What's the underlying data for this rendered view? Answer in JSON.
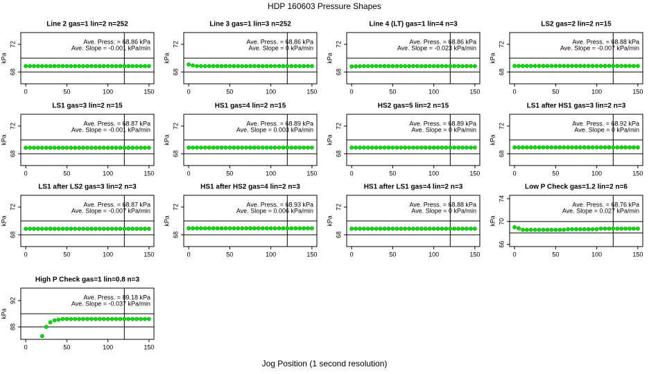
{
  "title": "HDP  160603  Pressure Shapes",
  "xlabel": "Jog Position (1 second resolution)",
  "chart_data": [
    {
      "type": "scatter",
      "title": "Line 2 gas=1 lin=2 n=252",
      "ylabel": "kPa",
      "annotations": [
        "Ave. Press. = 68.86  kPa",
        "Ave. Slope = -0.001  kPa/min"
      ],
      "color": "#00dd00",
      "xlim": [
        -6,
        156
      ],
      "ylim": [
        66.3,
        73.7
      ],
      "xticks": [
        0,
        50,
        100,
        150
      ],
      "yticks": [
        68,
        72
      ],
      "hlines": [
        68,
        70
      ],
      "vline": 120,
      "x": [
        0,
        5,
        10,
        15,
        20,
        25,
        30,
        35,
        40,
        45,
        50,
        55,
        60,
        65,
        70,
        75,
        80,
        85,
        90,
        95,
        100,
        105,
        110,
        115,
        120,
        125,
        130,
        135,
        140,
        145,
        150
      ],
      "values": [
        68.86,
        68.86,
        68.86,
        68.86,
        68.86,
        68.86,
        68.86,
        68.86,
        68.86,
        68.86,
        68.86,
        68.86,
        68.86,
        68.86,
        68.86,
        68.86,
        68.86,
        68.86,
        68.86,
        68.86,
        68.86,
        68.86,
        68.86,
        68.86,
        68.86,
        68.86,
        68.86,
        68.86,
        68.86,
        68.86,
        68.86
      ]
    },
    {
      "type": "scatter",
      "title": "Line 3 gas=1 lin=3 n=252",
      "ylabel": "kPa",
      "annotations": [
        "Ave. Press. = 68.86  kPa",
        "Ave. Slope = 0  kPa/min"
      ],
      "color": "#00dd00",
      "xlim": [
        -6,
        156
      ],
      "ylim": [
        66.3,
        73.7
      ],
      "xticks": [
        0,
        50,
        100,
        150
      ],
      "yticks": [
        68,
        72
      ],
      "hlines": [
        68,
        70
      ],
      "vline": 120,
      "x": [
        0,
        5,
        10,
        15,
        20,
        25,
        30,
        35,
        40,
        45,
        50,
        55,
        60,
        65,
        70,
        75,
        80,
        85,
        90,
        95,
        100,
        105,
        110,
        115,
        120,
        125,
        130,
        135,
        140,
        145,
        150
      ],
      "values": [
        69.1,
        68.95,
        68.86,
        68.86,
        68.86,
        68.86,
        68.86,
        68.86,
        68.86,
        68.86,
        68.86,
        68.86,
        68.86,
        68.86,
        68.86,
        68.86,
        68.86,
        68.86,
        68.86,
        68.86,
        68.86,
        68.86,
        68.86,
        68.86,
        68.86,
        68.86,
        68.86,
        68.86,
        68.86,
        68.86,
        68.86
      ]
    },
    {
      "type": "scatter",
      "title": "Line 4 (LT) gas=1 lin=4 n=3",
      "ylabel": "kPa",
      "annotations": [
        "Ave. Press. = 68.86  kPa",
        "Ave. Slope = -0.023  kPa/min"
      ],
      "color": "#00dd00",
      "xlim": [
        -6,
        156
      ],
      "ylim": [
        66.3,
        73.7
      ],
      "xticks": [
        0,
        50,
        100,
        150
      ],
      "yticks": [
        68,
        72
      ],
      "hlines": [
        68,
        70
      ],
      "vline": 120,
      "x": [
        0,
        5,
        10,
        15,
        20,
        25,
        30,
        35,
        40,
        45,
        50,
        55,
        60,
        65,
        70,
        75,
        80,
        85,
        90,
        95,
        100,
        105,
        110,
        115,
        120,
        125,
        130,
        135,
        140,
        145,
        150
      ],
      "values": [
        68.8,
        68.82,
        68.84,
        68.86,
        68.86,
        68.86,
        68.86,
        68.86,
        68.86,
        68.86,
        68.86,
        68.86,
        68.86,
        68.86,
        68.86,
        68.86,
        68.86,
        68.86,
        68.86,
        68.86,
        68.86,
        68.86,
        68.86,
        68.86,
        68.86,
        68.86,
        68.86,
        68.86,
        68.86,
        68.86,
        68.86
      ]
    },
    {
      "type": "scatter",
      "title": "LS2 gas=2 lin=2 n=15",
      "ylabel": "kPa",
      "annotations": [
        "Ave. Press. = 68.88  kPa",
        "Ave. Slope = -0.007  kPa/min"
      ],
      "color": "#00dd00",
      "xlim": [
        -6,
        156
      ],
      "ylim": [
        66.3,
        73.7
      ],
      "xticks": [
        0,
        50,
        100,
        150
      ],
      "yticks": [
        68,
        72
      ],
      "hlines": [
        68,
        70
      ],
      "vline": 120,
      "x": [
        0,
        5,
        10,
        15,
        20,
        25,
        30,
        35,
        40,
        45,
        50,
        55,
        60,
        65,
        70,
        75,
        80,
        85,
        90,
        95,
        100,
        105,
        110,
        115,
        120,
        125,
        130,
        135,
        140,
        145,
        150
      ],
      "values": [
        68.88,
        68.88,
        68.88,
        68.88,
        68.88,
        68.88,
        68.88,
        68.88,
        68.88,
        68.88,
        68.88,
        68.88,
        68.88,
        68.88,
        68.88,
        68.88,
        68.88,
        68.88,
        68.88,
        68.88,
        68.88,
        68.88,
        68.88,
        68.88,
        68.88,
        68.88,
        68.88,
        68.88,
        68.88,
        68.88,
        68.88
      ]
    },
    {
      "type": "scatter",
      "title": "LS1 gas=3 lin=2 n=15",
      "ylabel": "kPa",
      "annotations": [
        "Ave. Press. = 68.87  kPa",
        "Ave. Slope = -0.001  kPa/min"
      ],
      "color": "#00dd00",
      "xlim": [
        -6,
        156
      ],
      "ylim": [
        66.3,
        73.7
      ],
      "xticks": [
        0,
        50,
        100,
        150
      ],
      "yticks": [
        68,
        72
      ],
      "hlines": [
        68,
        70
      ],
      "vline": 120,
      "x": [
        0,
        5,
        10,
        15,
        20,
        25,
        30,
        35,
        40,
        45,
        50,
        55,
        60,
        65,
        70,
        75,
        80,
        85,
        90,
        95,
        100,
        105,
        110,
        115,
        120,
        125,
        130,
        135,
        140,
        145,
        150
      ],
      "values": [
        68.87,
        68.87,
        68.87,
        68.87,
        68.87,
        68.87,
        68.87,
        68.87,
        68.87,
        68.87,
        68.87,
        68.87,
        68.87,
        68.87,
        68.87,
        68.87,
        68.87,
        68.87,
        68.87,
        68.87,
        68.87,
        68.87,
        68.87,
        68.87,
        68.87,
        68.87,
        68.87,
        68.87,
        68.87,
        68.87,
        68.87
      ]
    },
    {
      "type": "scatter",
      "title": "HS1 gas=4 lin=2 n=15",
      "ylabel": "kPa",
      "annotations": [
        "Ave. Press. = 68.89  kPa",
        "Ave. Slope = 0.003  kPa/min"
      ],
      "color": "#00dd00",
      "xlim": [
        -6,
        156
      ],
      "ylim": [
        66.3,
        73.7
      ],
      "xticks": [
        0,
        50,
        100,
        150
      ],
      "yticks": [
        68,
        72
      ],
      "hlines": [
        68,
        70
      ],
      "vline": 120,
      "x": [
        0,
        5,
        10,
        15,
        20,
        25,
        30,
        35,
        40,
        45,
        50,
        55,
        60,
        65,
        70,
        75,
        80,
        85,
        90,
        95,
        100,
        105,
        110,
        115,
        120,
        125,
        130,
        135,
        140,
        145,
        150
      ],
      "values": [
        68.89,
        68.89,
        68.89,
        68.89,
        68.89,
        68.89,
        68.89,
        68.89,
        68.89,
        68.89,
        68.89,
        68.89,
        68.89,
        68.89,
        68.89,
        68.89,
        68.89,
        68.89,
        68.89,
        68.89,
        68.89,
        68.89,
        68.89,
        68.89,
        68.89,
        68.89,
        68.89,
        68.89,
        68.89,
        68.89,
        68.89
      ]
    },
    {
      "type": "scatter",
      "title": "HS2 gas=5 lin=2 n=15",
      "ylabel": "kPa",
      "annotations": [
        "Ave. Press. = 68.89  kPa",
        "Ave. Slope = 0  kPa/min"
      ],
      "color": "#00dd00",
      "xlim": [
        -6,
        156
      ],
      "ylim": [
        66.3,
        73.7
      ],
      "xticks": [
        0,
        50,
        100,
        150
      ],
      "yticks": [
        68,
        72
      ],
      "hlines": [
        68,
        70
      ],
      "vline": 120,
      "x": [
        0,
        5,
        10,
        15,
        20,
        25,
        30,
        35,
        40,
        45,
        50,
        55,
        60,
        65,
        70,
        75,
        80,
        85,
        90,
        95,
        100,
        105,
        110,
        115,
        120,
        125,
        130,
        135,
        140,
        145,
        150
      ],
      "values": [
        68.89,
        68.89,
        68.89,
        68.89,
        68.89,
        68.89,
        68.89,
        68.89,
        68.89,
        68.89,
        68.89,
        68.89,
        68.89,
        68.89,
        68.89,
        68.89,
        68.89,
        68.89,
        68.89,
        68.89,
        68.89,
        68.89,
        68.89,
        68.89,
        68.89,
        68.89,
        68.89,
        68.89,
        68.89,
        68.89,
        68.89
      ]
    },
    {
      "type": "scatter",
      "title": "LS1 after HS1 gas=3 lin=2 n=3",
      "ylabel": "kPa",
      "annotations": [
        "Ave. Press. = 68.92  kPa",
        "Ave. Slope = 0  kPa/min"
      ],
      "color": "#00dd00",
      "xlim": [
        -6,
        156
      ],
      "ylim": [
        66.3,
        73.7
      ],
      "xticks": [
        0,
        50,
        100,
        150
      ],
      "yticks": [
        68,
        72
      ],
      "hlines": [
        68,
        70
      ],
      "vline": 120,
      "x": [
        0,
        5,
        10,
        15,
        20,
        25,
        30,
        35,
        40,
        45,
        50,
        55,
        60,
        65,
        70,
        75,
        80,
        85,
        90,
        95,
        100,
        105,
        110,
        115,
        120,
        125,
        130,
        135,
        140,
        145,
        150
      ],
      "values": [
        68.92,
        68.92,
        68.92,
        68.92,
        68.92,
        68.92,
        68.92,
        68.92,
        68.92,
        68.92,
        68.92,
        68.92,
        68.92,
        68.92,
        68.92,
        68.92,
        68.92,
        68.92,
        68.92,
        68.92,
        68.92,
        68.92,
        68.92,
        68.92,
        68.92,
        68.92,
        68.92,
        68.92,
        68.92,
        68.92,
        68.92
      ]
    },
    {
      "type": "scatter",
      "title": "LS1 after LS2 gas=3 lin=2 n=3",
      "ylabel": "kPa",
      "annotations": [
        "Ave. Press. = 68.87  kPa",
        "Ave. Slope = -0.007  kPa/min"
      ],
      "color": "#00dd00",
      "xlim": [
        -6,
        156
      ],
      "ylim": [
        66.3,
        73.7
      ],
      "xticks": [
        0,
        50,
        100,
        150
      ],
      "yticks": [
        68,
        72
      ],
      "hlines": [
        68,
        70
      ],
      "vline": 120,
      "x": [
        0,
        5,
        10,
        15,
        20,
        25,
        30,
        35,
        40,
        45,
        50,
        55,
        60,
        65,
        70,
        75,
        80,
        85,
        90,
        95,
        100,
        105,
        110,
        115,
        120,
        125,
        130,
        135,
        140,
        145,
        150
      ],
      "values": [
        68.87,
        68.87,
        68.87,
        68.87,
        68.87,
        68.87,
        68.87,
        68.87,
        68.87,
        68.87,
        68.87,
        68.87,
        68.87,
        68.87,
        68.87,
        68.87,
        68.87,
        68.87,
        68.87,
        68.87,
        68.87,
        68.87,
        68.87,
        68.87,
        68.87,
        68.87,
        68.87,
        68.87,
        68.87,
        68.87,
        68.87
      ]
    },
    {
      "type": "scatter",
      "title": "HS1 after HS2 gas=4 lin=2 n=3",
      "ylabel": "kPa",
      "annotations": [
        "Ave. Press. = 68.93  kPa",
        "Ave. Slope = 0.006  kPa/min"
      ],
      "color": "#00dd00",
      "xlim": [
        -6,
        156
      ],
      "ylim": [
        66.3,
        73.7
      ],
      "xticks": [
        0,
        50,
        100,
        150
      ],
      "yticks": [
        68,
        72
      ],
      "hlines": [
        68,
        70
      ],
      "vline": 120,
      "x": [
        0,
        5,
        10,
        15,
        20,
        25,
        30,
        35,
        40,
        45,
        50,
        55,
        60,
        65,
        70,
        75,
        80,
        85,
        90,
        95,
        100,
        105,
        110,
        115,
        120,
        125,
        130,
        135,
        140,
        145,
        150
      ],
      "values": [
        68.93,
        68.93,
        68.93,
        68.93,
        68.93,
        68.93,
        68.93,
        68.93,
        68.93,
        68.93,
        68.93,
        68.93,
        68.93,
        68.93,
        68.93,
        68.93,
        68.93,
        68.93,
        68.93,
        68.93,
        68.93,
        68.93,
        68.93,
        68.93,
        68.93,
        68.93,
        68.93,
        68.93,
        68.93,
        68.93,
        68.93
      ]
    },
    {
      "type": "scatter",
      "title": "HS1 after LS1 gas=4 lin=2 n=3",
      "ylabel": "kPa",
      "annotations": [
        "Ave. Press. = 68.88  kPa",
        "Ave. Slope = 0  kPa/min"
      ],
      "color": "#00dd00",
      "xlim": [
        -6,
        156
      ],
      "ylim": [
        66.3,
        73.7
      ],
      "xticks": [
        0,
        50,
        100,
        150
      ],
      "yticks": [
        68,
        72
      ],
      "hlines": [
        68,
        70
      ],
      "vline": 120,
      "x": [
        0,
        5,
        10,
        15,
        20,
        25,
        30,
        35,
        40,
        45,
        50,
        55,
        60,
        65,
        70,
        75,
        80,
        85,
        90,
        95,
        100,
        105,
        110,
        115,
        120,
        125,
        130,
        135,
        140,
        145,
        150
      ],
      "values": [
        68.88,
        68.88,
        68.88,
        68.88,
        68.88,
        68.88,
        68.88,
        68.88,
        68.88,
        68.88,
        68.88,
        68.88,
        68.88,
        68.88,
        68.88,
        68.88,
        68.88,
        68.88,
        68.88,
        68.88,
        68.88,
        68.88,
        68.88,
        68.88,
        68.88,
        68.88,
        68.88,
        68.88,
        68.88,
        68.88,
        68.88
      ]
    },
    {
      "type": "scatter",
      "title": "Low P Check gas=1.2 lin=2 n=6",
      "ylabel": "kPa",
      "annotations": [
        "Ave. Press. = 68.76  kPa",
        "Ave. Slope = 0.027  kPa/min"
      ],
      "color": "#00dd00",
      "xlim": [
        -6,
        156
      ],
      "ylim": [
        65.6,
        74.6
      ],
      "xticks": [
        0,
        50,
        100,
        150
      ],
      "yticks": [
        66,
        70,
        74
      ],
      "hlines": [
        68,
        70
      ],
      "vline": 120,
      "x": [
        0,
        5,
        10,
        15,
        20,
        25,
        30,
        35,
        40,
        45,
        50,
        55,
        60,
        65,
        70,
        75,
        80,
        85,
        90,
        95,
        100,
        105,
        110,
        115,
        120,
        125,
        130,
        135,
        140,
        145,
        150
      ],
      "values": [
        69.0,
        68.8,
        68.55,
        68.55,
        68.55,
        68.55,
        68.55,
        68.55,
        68.55,
        68.55,
        68.55,
        68.55,
        68.55,
        68.65,
        68.65,
        68.65,
        68.65,
        68.65,
        68.65,
        68.65,
        68.65,
        68.75,
        68.75,
        68.75,
        68.75,
        68.75,
        68.75,
        68.75,
        68.75,
        68.75,
        68.75
      ]
    },
    {
      "type": "scatter",
      "title": "High P Check gas=1 lin=0.8 n=3",
      "ylabel": "kPa",
      "annotations": [
        "Ave. Press. = 89.18  kPa",
        "Ave. Slope = -0.037  kPa/min"
      ],
      "color": "#00dd00",
      "xlim": [
        -6,
        156
      ],
      "ylim": [
        86.1,
        93.9
      ],
      "xticks": [
        0,
        50,
        100,
        150
      ],
      "yticks": [
        88,
        92
      ],
      "hlines": [
        88,
        90
      ],
      "vline": 120,
      "x": [
        0,
        5,
        10,
        15,
        20,
        25,
        30,
        35,
        40,
        45,
        50,
        55,
        60,
        65,
        70,
        75,
        80,
        85,
        90,
        95,
        100,
        105,
        110,
        115,
        120,
        125,
        130,
        135,
        140,
        145,
        150
      ],
      "values": [
        null,
        null,
        null,
        null,
        86.6,
        88.0,
        88.7,
        89.0,
        89.1,
        89.2,
        89.2,
        89.2,
        89.2,
        89.2,
        89.2,
        89.2,
        89.2,
        89.2,
        89.2,
        89.2,
        89.2,
        89.2,
        89.2,
        89.2,
        89.2,
        89.2,
        89.2,
        89.2,
        89.2,
        89.2,
        89.2
      ]
    }
  ]
}
